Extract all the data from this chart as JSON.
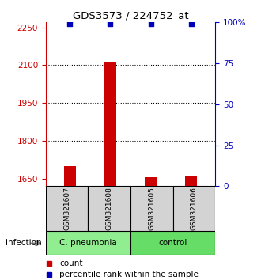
{
  "title": "GDS3573 / 224752_at",
  "samples": [
    "GSM321607",
    "GSM321608",
    "GSM321605",
    "GSM321606"
  ],
  "count_values": [
    1700,
    2110,
    1655,
    1662
  ],
  "percentile_values": [
    99,
    99,
    99,
    99
  ],
  "ylim_left": [
    1620,
    2270
  ],
  "ylim_right": [
    0,
    100
  ],
  "yticks_left": [
    1650,
    1800,
    1950,
    2100,
    2250
  ],
  "yticks_right": [
    0,
    25,
    50,
    75,
    100
  ],
  "dotted_lines": [
    1800,
    1950,
    2100
  ],
  "bar_color": "#CC0000",
  "dot_color": "#0000BB",
  "left_tick_color": "#CC0000",
  "right_tick_color": "#0000BB",
  "cpneumonia_color": "#90EE90",
  "control_color": "#66DD66",
  "sample_box_color": "#D3D3D3",
  "infection_label": "infection",
  "legend_count_label": "count",
  "legend_percentile_label": "percentile rank within the sample",
  "background_color": "#FFFFFF"
}
